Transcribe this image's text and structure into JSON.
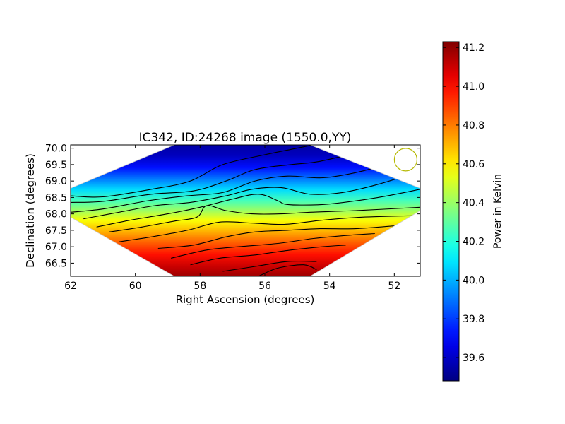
{
  "chart_data": {
    "type": "heatmap",
    "title": "IC342, ID:24268 image (1550.0,YY)",
    "xlabel": "Right Ascension (degrees)",
    "ylabel": "Declination (degrees)",
    "xlim": [
      62,
      51.2
    ],
    "ylim": [
      66.1,
      70.1
    ],
    "x_ticks": [
      "62",
      "60",
      "58",
      "56",
      "54",
      "52"
    ],
    "x_tick_values": [
      62,
      60,
      58,
      56,
      54,
      52
    ],
    "y_ticks": [
      "66.5",
      "67.0",
      "67.5",
      "68.0",
      "68.5",
      "69.0",
      "69.5",
      "70.0"
    ],
    "y_tick_values": [
      66.5,
      67.0,
      67.5,
      68.0,
      68.5,
      69.0,
      69.5,
      70.0
    ],
    "mapped_region": [
      [
        62,
        68.78
      ],
      [
        58.8,
        70.1
      ],
      [
        54.6,
        70.1
      ],
      [
        51.2,
        68.78
      ],
      [
        51.2,
        68.1
      ],
      [
        54.6,
        66.1
      ],
      [
        58.8,
        66.1
      ],
      [
        62,
        67.9
      ]
    ],
    "contours": [
      [
        [
          62,
          68.55
        ],
        [
          61,
          68.52
        ],
        [
          59.5,
          68.75
        ],
        [
          58.3,
          69.0
        ],
        [
          57.3,
          69.5
        ],
        [
          56.0,
          69.8
        ],
        [
          55.0,
          70.0
        ],
        [
          54.5,
          70.1
        ]
      ],
      [
        [
          62,
          68.35
        ],
        [
          61,
          68.38
        ],
        [
          59.5,
          68.6
        ],
        [
          58.2,
          68.7
        ],
        [
          57.2,
          69.0
        ],
        [
          56.3,
          69.35
        ],
        [
          55.2,
          69.5
        ],
        [
          54.3,
          69.6
        ],
        [
          53.0,
          69.9
        ]
      ],
      [
        [
          62,
          68.05
        ],
        [
          61,
          68.15
        ],
        [
          59.6,
          68.4
        ],
        [
          58.4,
          68.55
        ],
        [
          57.3,
          68.65
        ],
        [
          56.3,
          69.0
        ],
        [
          55.3,
          69.15
        ],
        [
          54.2,
          69.1
        ],
        [
          53.0,
          69.3
        ],
        [
          52.0,
          69.6
        ]
      ],
      [
        [
          61.6,
          67.85
        ],
        [
          60.5,
          68.05
        ],
        [
          59.4,
          68.25
        ],
        [
          58.3,
          68.35
        ],
        [
          57.2,
          68.55
        ],
        [
          56.4,
          68.75
        ],
        [
          55.5,
          68.8
        ],
        [
          54.6,
          68.6
        ],
        [
          53.6,
          68.65
        ],
        [
          52.5,
          68.9
        ],
        [
          51.2,
          69.3
        ]
      ],
      [
        [
          61.2,
          67.6
        ],
        [
          60.2,
          67.8
        ],
        [
          59.0,
          68.0
        ],
        [
          58.0,
          68.2
        ],
        [
          57.0,
          68.45
        ],
        [
          56.2,
          68.6
        ],
        [
          55.6,
          68.4
        ],
        [
          55.4,
          68.3
        ],
        [
          55.0,
          68.27
        ],
        [
          54.0,
          68.3
        ],
        [
          52.5,
          68.5
        ],
        [
          51.2,
          68.75
        ]
      ],
      [
        [
          60.8,
          67.45
        ],
        [
          59.8,
          67.6
        ],
        [
          58.8,
          67.78
        ],
        [
          58.1,
          67.9
        ],
        [
          57.8,
          68.25
        ],
        [
          57.2,
          68.1
        ],
        [
          56.4,
          68.0
        ],
        [
          55.5,
          68.0
        ],
        [
          54.6,
          68.05
        ],
        [
          53.2,
          68.1
        ],
        [
          51.2,
          68.2
        ]
      ],
      [
        [
          60.5,
          67.15
        ],
        [
          59.5,
          67.3
        ],
        [
          58.4,
          67.5
        ],
        [
          57.4,
          67.75
        ],
        [
          56.4,
          67.72
        ],
        [
          55.4,
          67.68
        ],
        [
          54.3,
          67.8
        ],
        [
          53.0,
          67.9
        ],
        [
          51.2,
          67.95
        ]
      ],
      [
        [
          59.3,
          66.95
        ],
        [
          58.2,
          67.05
        ],
        [
          57.2,
          67.3
        ],
        [
          56.3,
          67.45
        ],
        [
          55.3,
          67.5
        ],
        [
          54.3,
          67.55
        ],
        [
          53.2,
          67.55
        ],
        [
          51.8,
          67.65
        ]
      ],
      [
        [
          58.9,
          66.65
        ],
        [
          57.8,
          66.9
        ],
        [
          56.8,
          67.0
        ],
        [
          55.6,
          67.1
        ],
        [
          54.5,
          67.25
        ],
        [
          53.4,
          67.35
        ],
        [
          52.6,
          67.4
        ]
      ],
      [
        [
          58.3,
          66.45
        ],
        [
          57.4,
          66.65
        ],
        [
          56.3,
          66.75
        ],
        [
          55.2,
          66.9
        ],
        [
          54.2,
          67.0
        ],
        [
          53.5,
          67.05
        ]
      ],
      [
        [
          57.3,
          66.25
        ],
        [
          56.3,
          66.4
        ],
        [
          55.3,
          66.55
        ],
        [
          54.4,
          66.55
        ]
      ],
      [
        [
          56.2,
          66.1
        ],
        [
          55.6,
          66.35
        ],
        [
          54.8,
          66.45
        ],
        [
          54.4,
          66.3
        ]
      ]
    ],
    "beam_circle": {
      "ra": 51.65,
      "dec": 69.65
    },
    "colorbar": {
      "label": "Power in Kelvin",
      "range": [
        39.48,
        41.23
      ],
      "ticks": [
        "39.6",
        "39.8",
        "40.0",
        "40.2",
        "40.4",
        "40.6",
        "40.8",
        "41.0",
        "41.2"
      ],
      "tick_values": [
        39.6,
        39.8,
        40.0,
        40.2,
        40.4,
        40.6,
        40.8,
        41.0,
        41.2
      ],
      "colormap": "jet"
    },
    "grid": false,
    "legend": "none"
  }
}
